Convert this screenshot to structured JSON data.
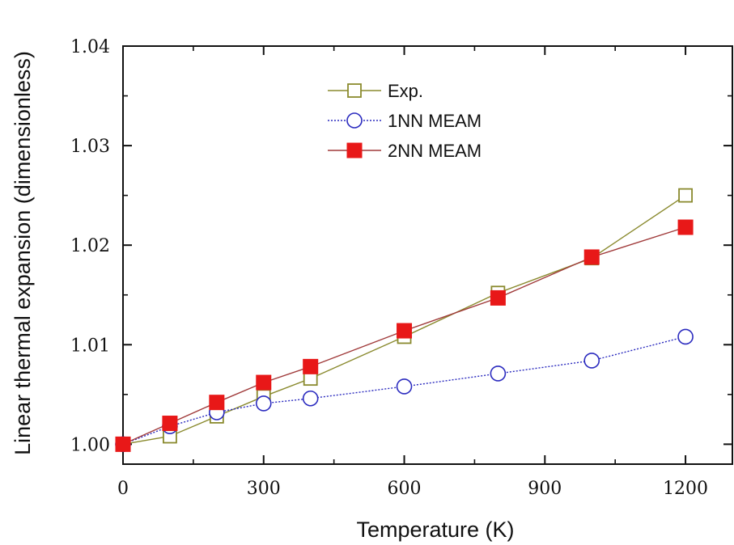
{
  "chart_data": {
    "type": "line",
    "title": "",
    "xlabel": "Temperature (K)",
    "ylabel": "Linear thermal expansion (dimensionless)",
    "xlim": [
      0,
      1300
    ],
    "ylim": [
      0.998,
      1.04
    ],
    "xticks": [
      0,
      300,
      600,
      900,
      1200
    ],
    "xtick_labels": [
      "0",
      "300",
      "600",
      "900",
      "1200"
    ],
    "yticks": [
      1.0,
      1.01,
      1.02,
      1.03,
      1.04
    ],
    "ytick_labels": [
      "1.00",
      "1.01",
      "1.02",
      "1.03",
      "1.04"
    ],
    "grid": false,
    "legend_position": "top-center",
    "series": [
      {
        "name": "Exp.",
        "marker": "open-square",
        "color": "#8a8a2e",
        "line_style": "solid",
        "x": [
          0,
          100,
          200,
          300,
          400,
          600,
          800,
          1000,
          1200
        ],
        "y": [
          1.0,
          1.0008,
          1.0028,
          1.0048,
          1.0066,
          1.0108,
          1.0152,
          1.0187,
          1.025
        ]
      },
      {
        "name": "1NN MEAM",
        "marker": "open-circle",
        "color": "#2b2bbf",
        "line_style": "dotted",
        "x": [
          0,
          100,
          200,
          300,
          400,
          600,
          800,
          1000,
          1200
        ],
        "y": [
          1.0,
          1.0018,
          1.0032,
          1.0041,
          1.0046,
          1.0058,
          1.0071,
          1.0084,
          1.0108
        ]
      },
      {
        "name": "2NN MEAM",
        "marker": "filled-square",
        "color": "#e81818",
        "line_color": "#a03a3a",
        "line_style": "solid",
        "x": [
          0,
          100,
          200,
          300,
          400,
          600,
          800,
          1000,
          1200
        ],
        "y": [
          1.0,
          1.0021,
          1.0042,
          1.0062,
          1.0078,
          1.0114,
          1.0147,
          1.0188,
          1.0218
        ]
      }
    ]
  }
}
